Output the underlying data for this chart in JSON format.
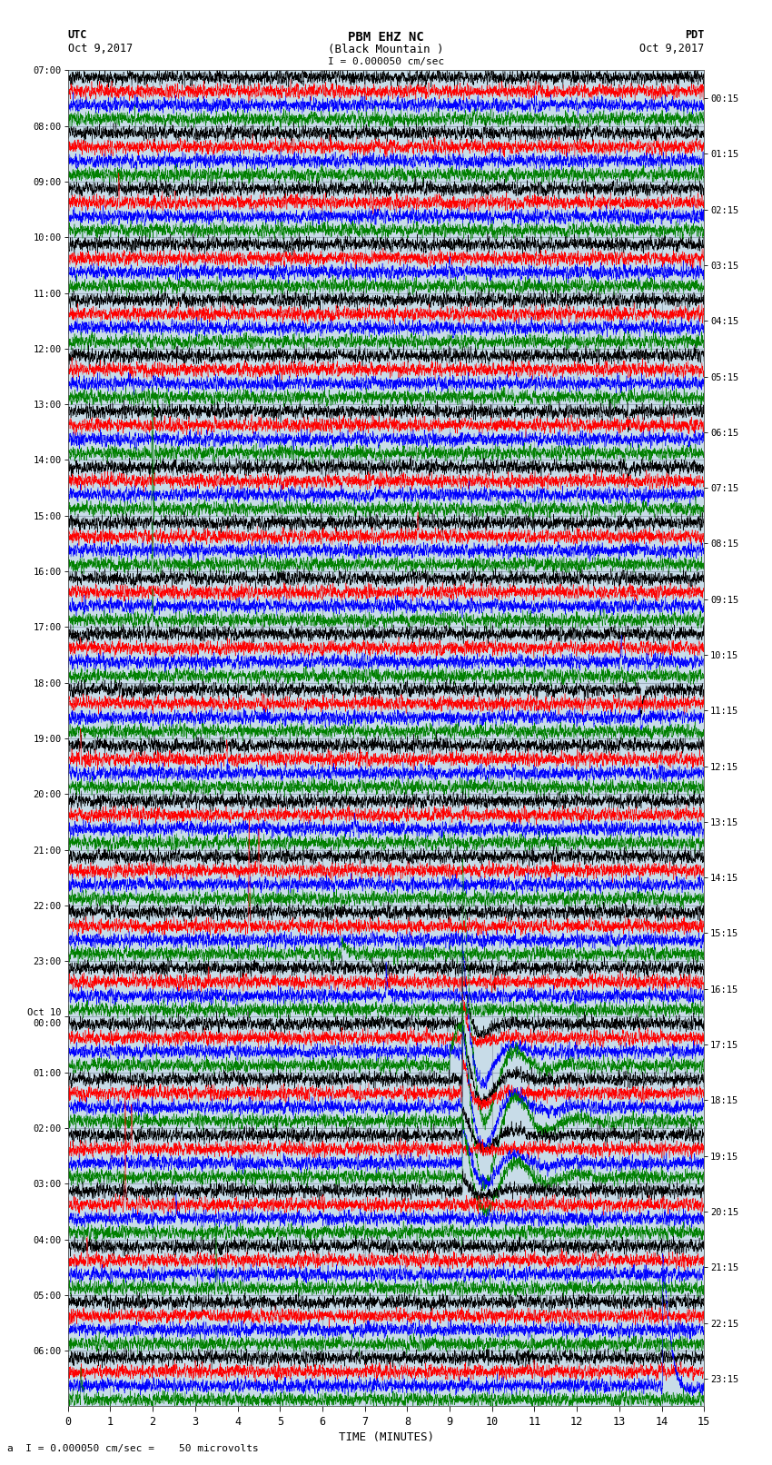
{
  "title_line1": "PBM EHZ NC",
  "title_line2": "(Black Mountain )",
  "scale_label": "I = 0.000050 cm/sec",
  "utc_label1": "UTC",
  "utc_label2": "Oct 9,2017",
  "pdt_label1": "PDT",
  "pdt_label2": "Oct 9,2017",
  "bottom_label": "a  I = 0.000050 cm/sec =    50 microvolts",
  "xlabel": "TIME (MINUTES)",
  "left_times_utc": [
    "07:00",
    "08:00",
    "09:00",
    "10:00",
    "11:00",
    "12:00",
    "13:00",
    "14:00",
    "15:00",
    "16:00",
    "17:00",
    "18:00",
    "19:00",
    "20:00",
    "21:00",
    "22:00",
    "23:00",
    "Oct 10\n00:00",
    "01:00",
    "02:00",
    "03:00",
    "04:00",
    "05:00",
    "06:00"
  ],
  "right_times_pdt": [
    "00:15",
    "01:15",
    "02:15",
    "03:15",
    "04:15",
    "05:15",
    "06:15",
    "07:15",
    "08:15",
    "09:15",
    "10:15",
    "11:15",
    "12:15",
    "13:15",
    "14:15",
    "15:15",
    "16:15",
    "17:15",
    "18:15",
    "19:15",
    "20:15",
    "21:15",
    "22:15",
    "23:15"
  ],
  "n_rows": 24,
  "n_traces_per_row": 4,
  "trace_colors": [
    "black",
    "red",
    "blue",
    "green"
  ],
  "bg_color": "#c8dce8",
  "grid_color": "#8899aa",
  "fig_bg": "white",
  "total_minutes": 15,
  "samples_per_row": 6000
}
